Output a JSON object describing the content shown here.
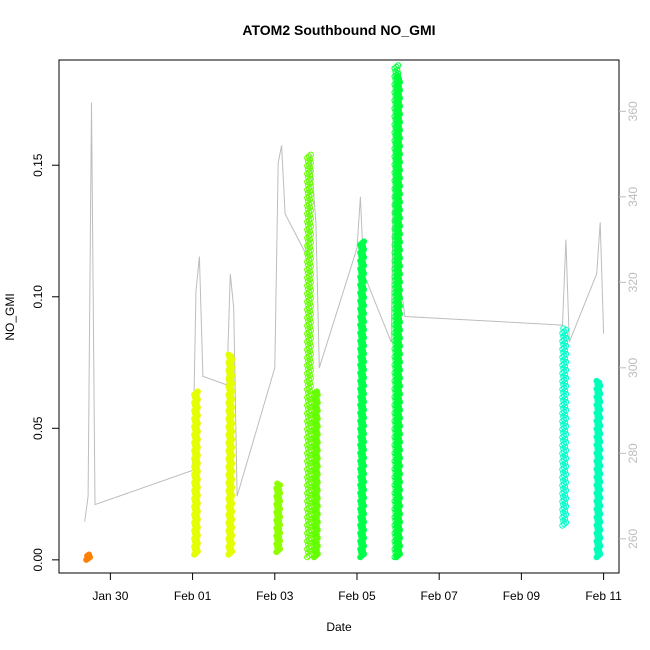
{
  "chart_data": {
    "type": "scatter",
    "title": "ATOM2 Southbound NO_GMI",
    "xlabel": "Date",
    "ylabel": "NO_GMI",
    "x_ticks": [
      "Jan 30",
      "Feb 01",
      "Feb 03",
      "Feb 05",
      "Feb 07",
      "Feb 09",
      "Feb 11"
    ],
    "x_range": [
      "2017-01-28T18:00",
      "2017-02-11T09:00"
    ],
    "left_axis": {
      "ylim": [
        -0.005,
        0.19
      ],
      "ticks": [
        "0.00",
        "0.05",
        "0.10",
        "0.15"
      ]
    },
    "right_axis": {
      "ylim": [
        252,
        372
      ],
      "ticks": [
        "260",
        "280",
        "300",
        "320",
        "340",
        "360"
      ],
      "color": "#bdbdbd"
    },
    "grid": false,
    "legend": "none",
    "series": [
      {
        "time": "2017-01-29T11:00",
        "color": "#ff7f00",
        "ymin": 0.0,
        "ymax": 0.002,
        "filled": true
      },
      {
        "time": "2017-02-01T02:00",
        "color": "#e5ff00",
        "ymin": 0.002,
        "ymax": 0.064,
        "filled": true
      },
      {
        "time": "2017-02-01T22:00",
        "color": "#e5ff00",
        "ymin": 0.002,
        "ymax": 0.078,
        "filled": true
      },
      {
        "time": "2017-02-03T02:00",
        "color": "#8fff00",
        "ymin": 0.003,
        "ymax": 0.029,
        "filled": true
      },
      {
        "time": "2017-02-03T20:00",
        "color": "#66ff00",
        "ymin": 0.001,
        "ymax": 0.154,
        "filled": false
      },
      {
        "time": "2017-02-04T00:00",
        "color": "#66ff00",
        "ymin": 0.001,
        "ymax": 0.064,
        "filled": true
      },
      {
        "time": "2017-02-05T03:00",
        "color": "#00ff4a",
        "ymin": 0.001,
        "ymax": 0.121,
        "filled": true
      },
      {
        "time": "2017-02-05T23:00",
        "color": "#00ff3a",
        "ymin": 0.001,
        "ymax": 0.188,
        "filled": false
      },
      {
        "time": "2017-02-06T00:00",
        "color": "#00ff3a",
        "ymin": 0.001,
        "ymax": 0.184,
        "filled": true
      },
      {
        "time": "2017-02-10T01:00",
        "color": "#00ffc8",
        "ymin": 0.013,
        "ymax": 0.088,
        "filled": false
      },
      {
        "time": "2017-02-10T21:00",
        "color": "#00ffb8",
        "ymin": 0.001,
        "ymax": 0.068,
        "filled": true
      }
    ],
    "secondary_line": {
      "color": "#bdbdbd",
      "points": [
        [
          "2017-01-29T09:00",
          264
        ],
        [
          "2017-01-29T11:00",
          270
        ],
        [
          "2017-01-29T13:00",
          362
        ],
        [
          "2017-01-29T15:00",
          268
        ],
        [
          "2017-02-01T00:00",
          276
        ],
        [
          "2017-02-01T02:00",
          318
        ],
        [
          "2017-02-01T04:00",
          326
        ],
        [
          "2017-02-01T06:00",
          298
        ],
        [
          "2017-02-01T20:00",
          296
        ],
        [
          "2017-02-01T22:00",
          322
        ],
        [
          "2017-02-02T00:00",
          314
        ],
        [
          "2017-02-02T02:00",
          270
        ],
        [
          "2017-02-03T00:00",
          300
        ],
        [
          "2017-02-03T02:00",
          348
        ],
        [
          "2017-02-03T04:00",
          352
        ],
        [
          "2017-02-03T06:00",
          336
        ],
        [
          "2017-02-03T19:00",
          326
        ],
        [
          "2017-02-03T21:00",
          350
        ],
        [
          "2017-02-04T00:00",
          334
        ],
        [
          "2017-02-04T02:00",
          300
        ],
        [
          "2017-02-05T00:00",
          328
        ],
        [
          "2017-02-05T02:00",
          340
        ],
        [
          "2017-02-05T04:00",
          322
        ],
        [
          "2017-02-05T20:00",
          306
        ],
        [
          "2017-02-05T22:00",
          366
        ],
        [
          "2017-02-06T00:00",
          324
        ],
        [
          "2017-02-06T04:00",
          312
        ],
        [
          "2017-02-10T00:00",
          310
        ],
        [
          "2017-02-10T02:00",
          330
        ],
        [
          "2017-02-10T04:00",
          306
        ],
        [
          "2017-02-10T20:00",
          322
        ],
        [
          "2017-02-10T22:00",
          334
        ],
        [
          "2017-02-11T00:00",
          308
        ]
      ]
    }
  }
}
